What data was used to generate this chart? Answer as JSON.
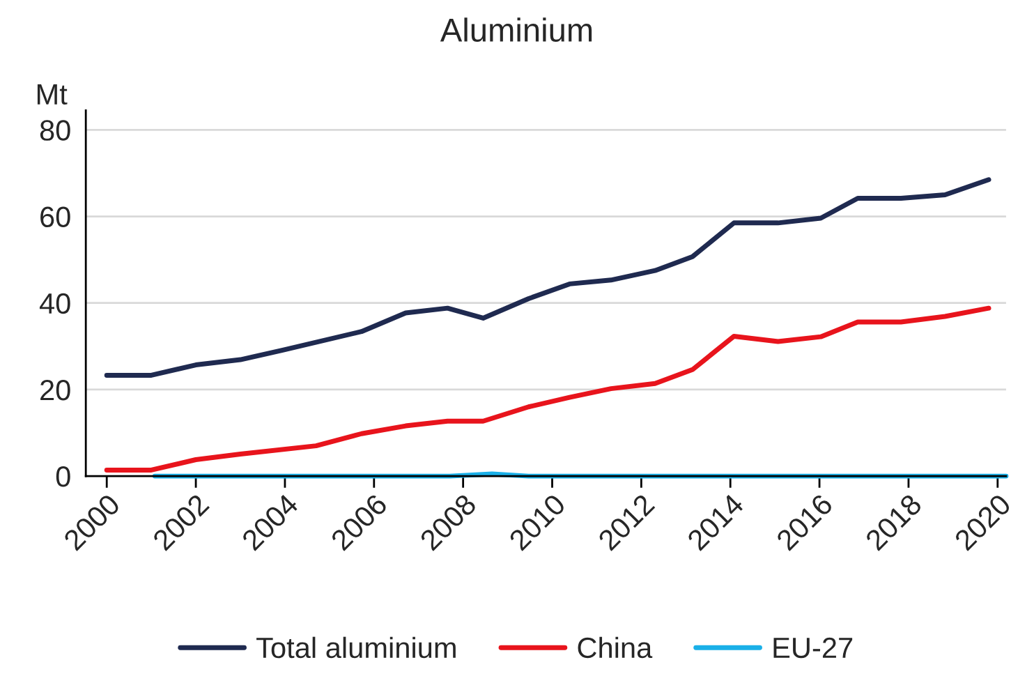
{
  "chart_data": {
    "type": "line",
    "title": "Aluminium",
    "ylabel": "Mt",
    "xlim": [
      1999.53,
      2020.19
    ],
    "xticks": [
      2000,
      2002,
      2004,
      2006,
      2008,
      2010,
      2012,
      2014,
      2016,
      2018,
      2020
    ],
    "ylim": [
      0,
      84.5
    ],
    "yticks": [
      0,
      20,
      40,
      60,
      80
    ],
    "grid": "y",
    "legend": "bottom",
    "line_style": "solid",
    "marker": "none",
    "series": [
      {
        "name": "Total aluminium",
        "color": "#1f2a50",
        "x": [
          2000,
          2001.0,
          2002.0,
          2003.0,
          2003.95,
          2005.72,
          2006.71,
          2007.65,
          2008.45,
          2009.47,
          2010.39,
          2011.32,
          2012.31,
          2013.15,
          2014.08,
          2015.07,
          2016.03,
          2016.86,
          2017.83,
          2018.82,
          2019.8
        ],
        "values": [
          23.3,
          23.3,
          25.7,
          26.9,
          29.1,
          33.4,
          37.7,
          38.8,
          36.5,
          41.0,
          44.4,
          45.3,
          47.5,
          50.7,
          58.5,
          58.5,
          59.6,
          64.2,
          64.2,
          65.0,
          68.5
        ]
      },
      {
        "name": "China",
        "color": "#e8141c",
        "x": [
          2000,
          2001.0,
          2002.0,
          2003.0,
          2004.7,
          2005.72,
          2006.71,
          2007.65,
          2008.45,
          2009.47,
          2010.39,
          2011.32,
          2012.31,
          2013.15,
          2014.08,
          2015.07,
          2016.03,
          2016.86,
          2017.83,
          2018.82,
          2019.8
        ],
        "values": [
          1.4,
          1.4,
          3.8,
          5.1,
          7.0,
          9.8,
          11.6,
          12.7,
          12.7,
          16.0,
          18.2,
          20.2,
          21.4,
          24.6,
          32.3,
          31.1,
          32.2,
          35.6,
          35.6,
          36.9,
          38.8
        ]
      },
      {
        "name": "EU-27",
        "color": "#1ab0e8",
        "x": [
          2001.08,
          2007.7,
          2008.65,
          2009.47,
          2020.19
        ],
        "values": [
          0,
          0,
          0.5,
          0,
          0
        ]
      }
    ]
  }
}
